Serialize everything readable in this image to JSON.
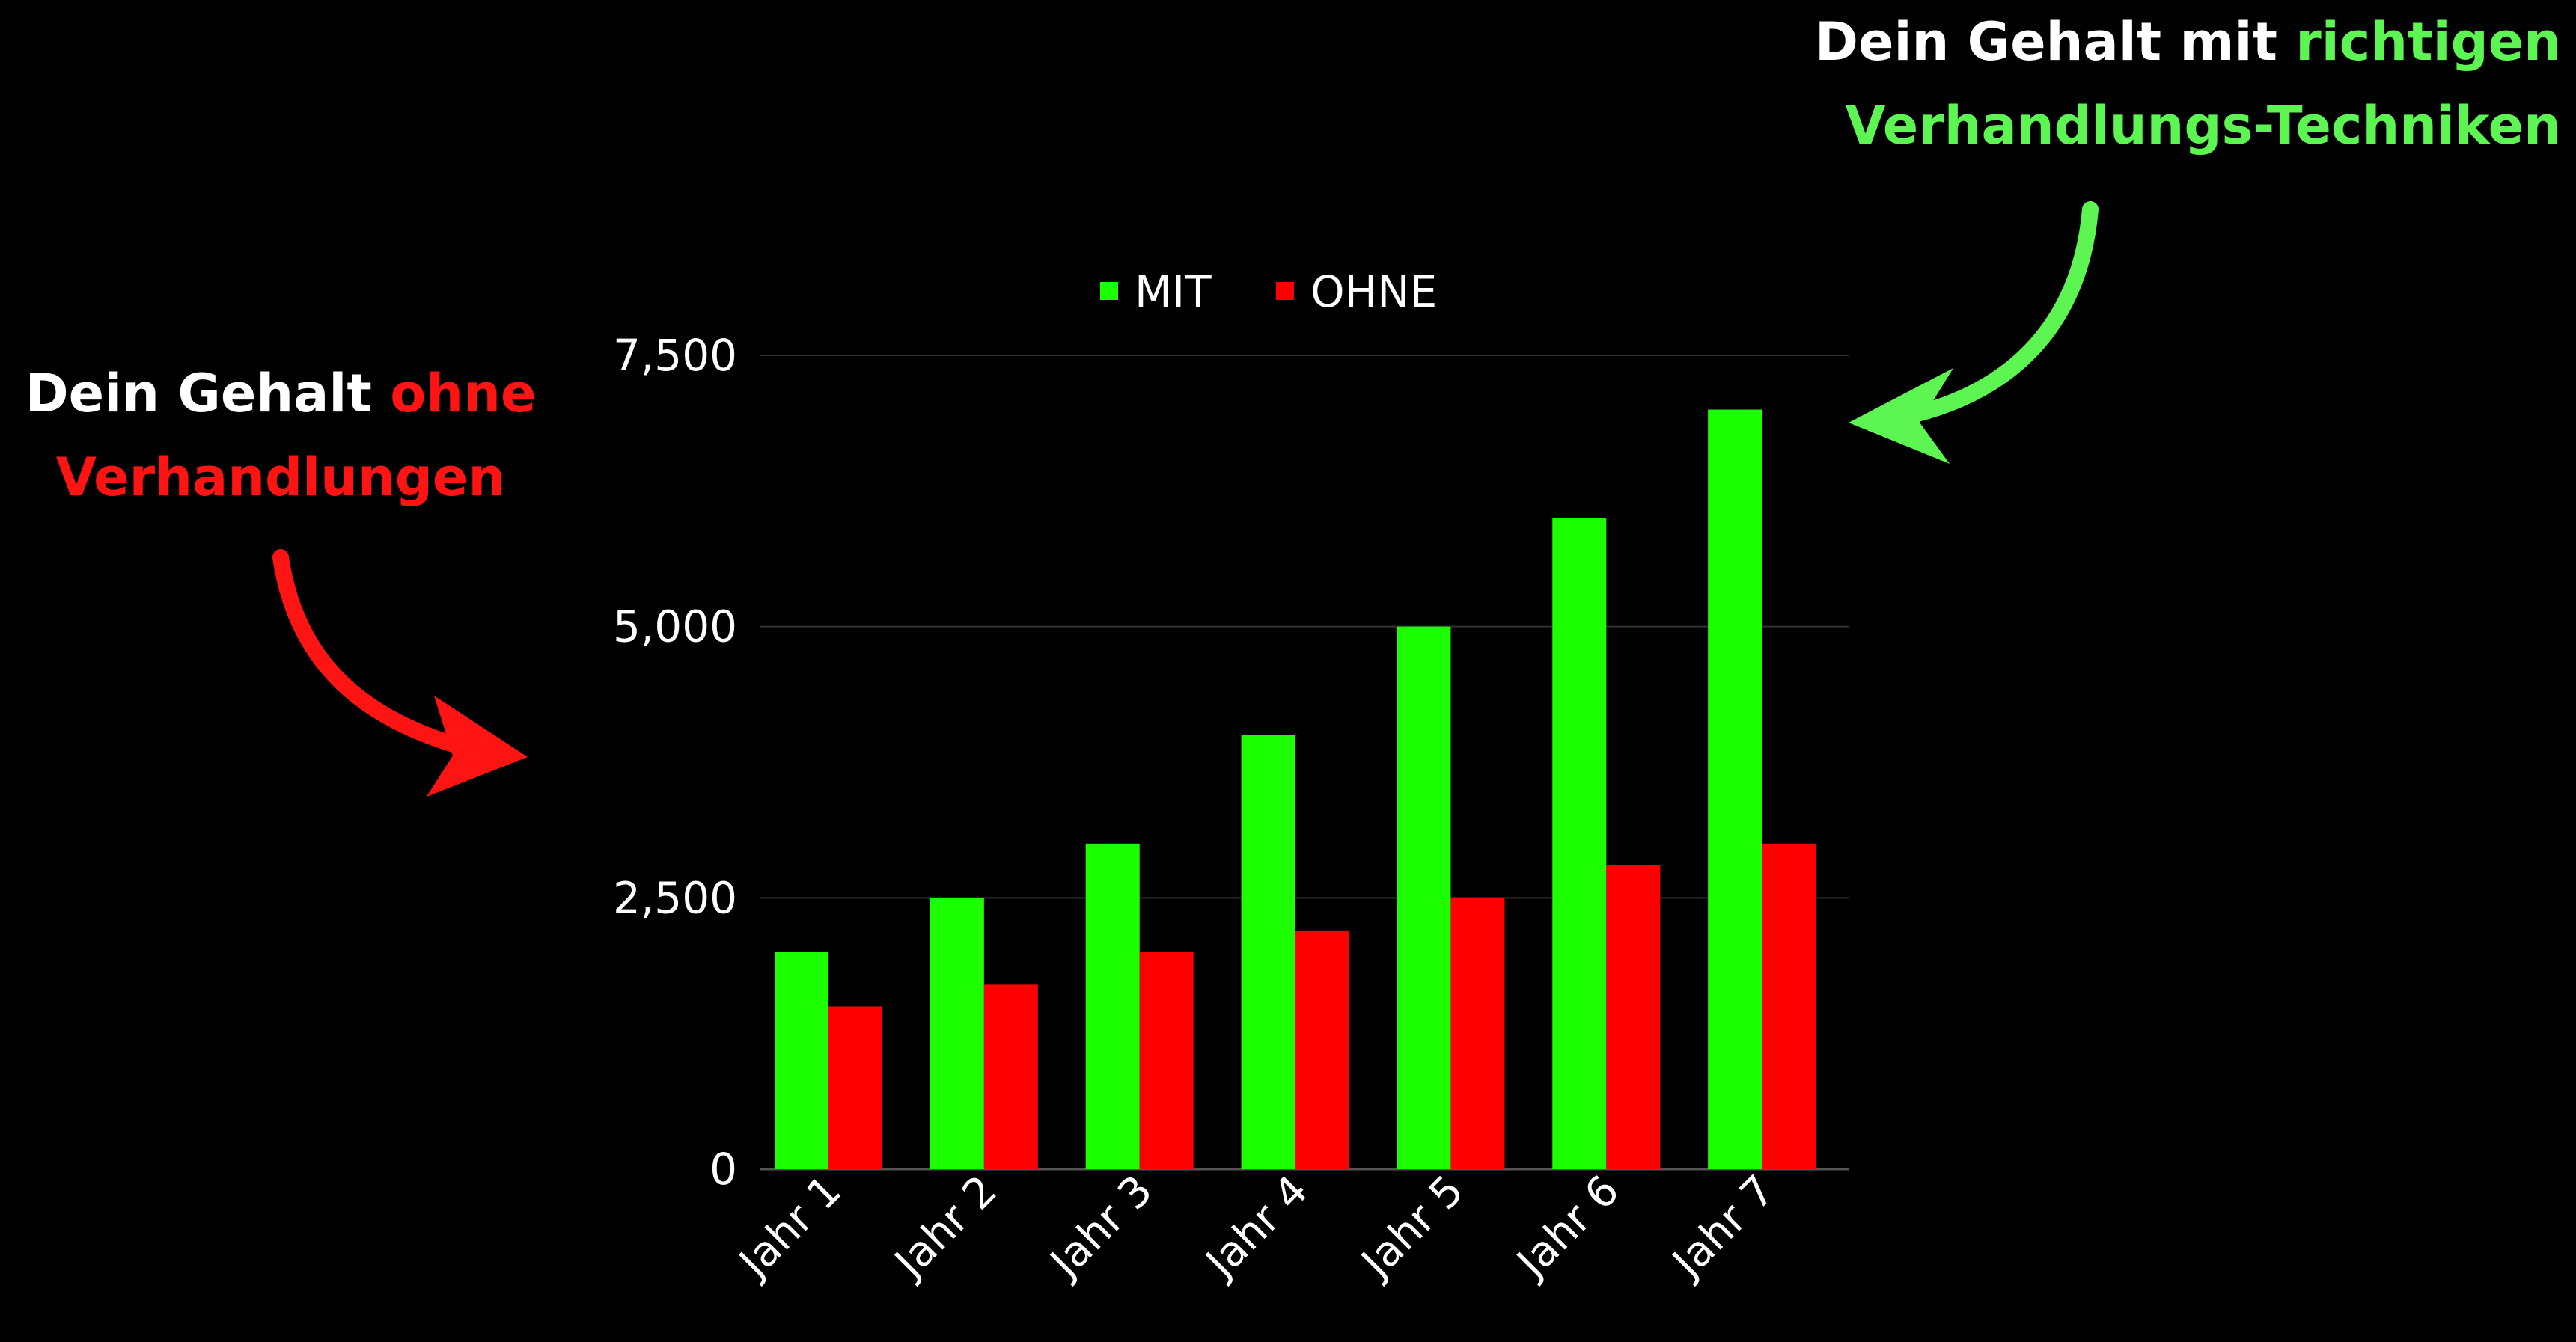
{
  "colors": {
    "background": "#000000",
    "mit": "#1cff00",
    "ohne": "#ff0000",
    "callout_green": "#5cf552",
    "callout_red": "#ff1414",
    "text": "#ffffff",
    "grid": "#333333"
  },
  "callouts": {
    "left": {
      "line1_white": "Dein Gehalt ",
      "line1_red": "ohne",
      "line2_red": "Verhandlungen"
    },
    "right": {
      "line1_white": "Dein Gehalt mit ",
      "line1_green": "richtigen",
      "line2_green": "Verhandlungs-Techniken"
    }
  },
  "chart_data": {
    "type": "bar",
    "title": "",
    "xlabel": "",
    "ylabel": "",
    "categories": [
      "Jahr 1",
      "Jahr 2",
      "Jahr 3",
      "Jahr 4",
      "Jahr 5",
      "Jahr 6",
      "Jahr 7"
    ],
    "series": [
      {
        "name": "MIT",
        "color": "#1cff00",
        "values": [
          2000,
          2500,
          3000,
          4000,
          5000,
          6000,
          7000
        ]
      },
      {
        "name": "OHNE",
        "color": "#ff0000",
        "values": [
          1500,
          1700,
          2000,
          2200,
          2500,
          2800,
          3000
        ]
      }
    ],
    "ylim": [
      0,
      7500
    ],
    "yticks": [
      {
        "value": 0,
        "label": "0"
      },
      {
        "value": 2500,
        "label": "2,500"
      },
      {
        "value": 5000,
        "label": "5,000"
      },
      {
        "value": 7500,
        "label": "7,500"
      }
    ],
    "grid": true,
    "legend_position": "top"
  }
}
